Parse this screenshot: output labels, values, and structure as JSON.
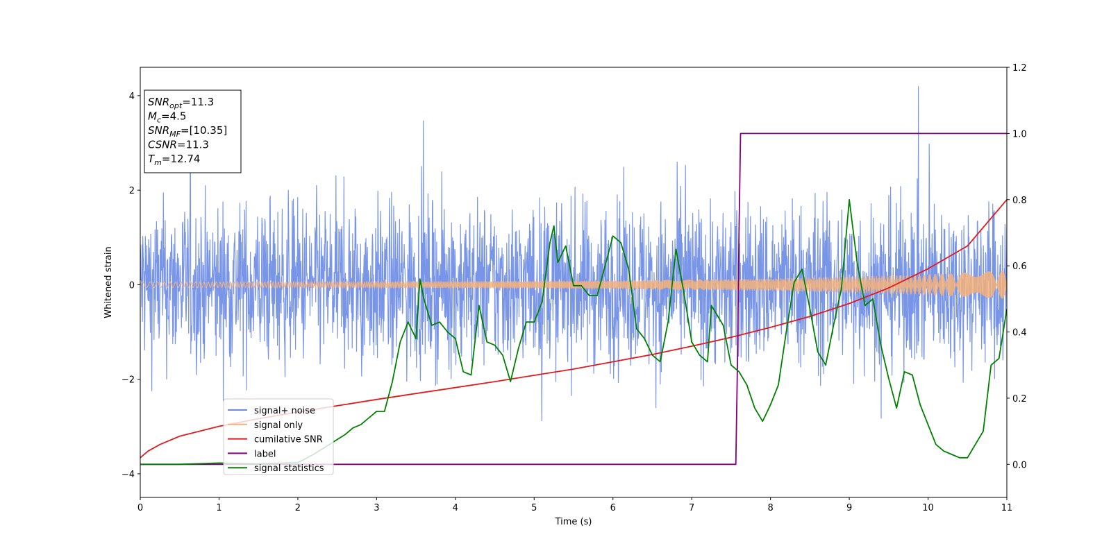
{
  "chart_data": {
    "type": "line",
    "title": "",
    "xlabel": "Time (s)",
    "ylabel": "Whitened strain",
    "y2label": "",
    "xlim": [
      0,
      11
    ],
    "ylim": [
      -4.5,
      4.6
    ],
    "y2lim": [
      -0.1,
      1.2
    ],
    "xticks": [
      "0",
      "1",
      "2",
      "3",
      "4",
      "5",
      "6",
      "7",
      "8",
      "9",
      "10",
      "11"
    ],
    "yticks": [
      "−4",
      "−2",
      "0",
      "2",
      "4"
    ],
    "y2ticks": [
      "0.0",
      "0.2",
      "0.4",
      "0.6",
      "0.8",
      "1.0",
      "1.2"
    ],
    "grid": false,
    "legend_position": "lower-left",
    "info_box": {
      "lines": [
        {
          "base": "SNR",
          "sub": "opt",
          "value": "=11.3"
        },
        {
          "base": "M",
          "sub": "c",
          "value": "=4.5"
        },
        {
          "base": "SNR",
          "sub": "MF",
          "value": "=[10.35]"
        },
        {
          "base": "CSNR",
          "sub": "",
          "value": "=11.3"
        },
        {
          "base": "T",
          "sub": "m",
          "value": "=12.74"
        }
      ]
    },
    "series": [
      {
        "name": "signal+ noise",
        "color": "#6a8ae6",
        "axis": "left",
        "description": "noise band: envelope approx ±2.2 with spikes up to ~4.2; centered at 0",
        "band_min": -2.6,
        "band_max": 2.5
      },
      {
        "name": "signal only",
        "color": "#f5b27a",
        "axis": "left",
        "description": "oscillating chirp centered at 0; amplitude grows over time",
        "amplitude_points": [
          {
            "x": 0,
            "y": 0.06
          },
          {
            "x": 2,
            "y": 0.06
          },
          {
            "x": 4,
            "y": 0.07
          },
          {
            "x": 6,
            "y": 0.09
          },
          {
            "x": 8,
            "y": 0.13
          },
          {
            "x": 9,
            "y": 0.17
          },
          {
            "x": 10,
            "y": 0.22
          },
          {
            "x": 11,
            "y": 0.3
          }
        ]
      },
      {
        "name": "cumilative SNR",
        "color": "#e31a1c",
        "axis": "right",
        "x": [
          0,
          0.1,
          0.25,
          0.5,
          1,
          1.5,
          2,
          2.5,
          3,
          3.5,
          4,
          4.5,
          5,
          5.5,
          6,
          6.5,
          7,
          7.5,
          8,
          8.5,
          9,
          9.5,
          10,
          10.5,
          11
        ],
        "y": [
          0.02,
          0.04,
          0.06,
          0.085,
          0.115,
          0.138,
          0.158,
          0.177,
          0.196,
          0.214,
          0.232,
          0.25,
          0.269,
          0.288,
          0.31,
          0.332,
          0.357,
          0.384,
          0.414,
          0.447,
          0.486,
          0.533,
          0.591,
          0.66,
          0.8
        ]
      },
      {
        "name": "label",
        "color": "#800080",
        "axis": "right",
        "x": [
          0,
          7.56,
          7.58,
          7.6,
          7.62,
          11
        ],
        "y": [
          0.0,
          0.0,
          0.3,
          0.7,
          1.0,
          1.0
        ]
      },
      {
        "name": "signal statistics",
        "color": "#008000",
        "axis": "right",
        "x": [
          0,
          0.5,
          1,
          1.5,
          2,
          2.2,
          2.4,
          2.6,
          2.7,
          2.8,
          2.9,
          3.0,
          3.1,
          3.2,
          3.3,
          3.4,
          3.5,
          3.55,
          3.6,
          3.7,
          3.8,
          3.9,
          4.0,
          4.1,
          4.2,
          4.3,
          4.4,
          4.5,
          4.6,
          4.7,
          4.8,
          4.9,
          5.0,
          5.1,
          5.2,
          5.25,
          5.3,
          5.4,
          5.5,
          5.6,
          5.7,
          5.8,
          5.9,
          6.0,
          6.1,
          6.2,
          6.3,
          6.4,
          6.5,
          6.6,
          6.7,
          6.8,
          6.9,
          7.0,
          7.1,
          7.2,
          7.25,
          7.3,
          7.4,
          7.5,
          7.6,
          7.7,
          7.8,
          7.9,
          8.0,
          8.1,
          8.2,
          8.3,
          8.4,
          8.5,
          8.6,
          8.7,
          8.8,
          8.9,
          9.0,
          9.1,
          9.2,
          9.3,
          9.4,
          9.5,
          9.6,
          9.7,
          9.8,
          9.9,
          10.0,
          10.1,
          10.2,
          10.3,
          10.4,
          10.5,
          10.6,
          10.7,
          10.8,
          10.9,
          11.0
        ],
        "y": [
          0.0,
          0.0,
          0.004,
          0.002,
          0.005,
          0.03,
          0.06,
          0.09,
          0.11,
          0.12,
          0.14,
          0.16,
          0.16,
          0.25,
          0.37,
          0.43,
          0.38,
          0.56,
          0.5,
          0.42,
          0.43,
          0.4,
          0.38,
          0.28,
          0.27,
          0.48,
          0.37,
          0.36,
          0.33,
          0.25,
          0.35,
          0.43,
          0.43,
          0.49,
          0.67,
          0.72,
          0.61,
          0.66,
          0.54,
          0.54,
          0.51,
          0.51,
          0.6,
          0.69,
          0.67,
          0.59,
          0.41,
          0.38,
          0.33,
          0.31,
          0.43,
          0.65,
          0.52,
          0.37,
          0.33,
          0.31,
          0.48,
          0.46,
          0.42,
          0.3,
          0.28,
          0.24,
          0.17,
          0.13,
          0.18,
          0.24,
          0.4,
          0.55,
          0.59,
          0.47,
          0.34,
          0.3,
          0.42,
          0.53,
          0.8,
          0.61,
          0.48,
          0.5,
          0.36,
          0.26,
          0.17,
          0.28,
          0.27,
          0.18,
          0.12,
          0.06,
          0.04,
          0.03,
          0.02,
          0.02,
          0.06,
          0.1,
          0.3,
          0.32,
          0.47
        ]
      }
    ]
  }
}
